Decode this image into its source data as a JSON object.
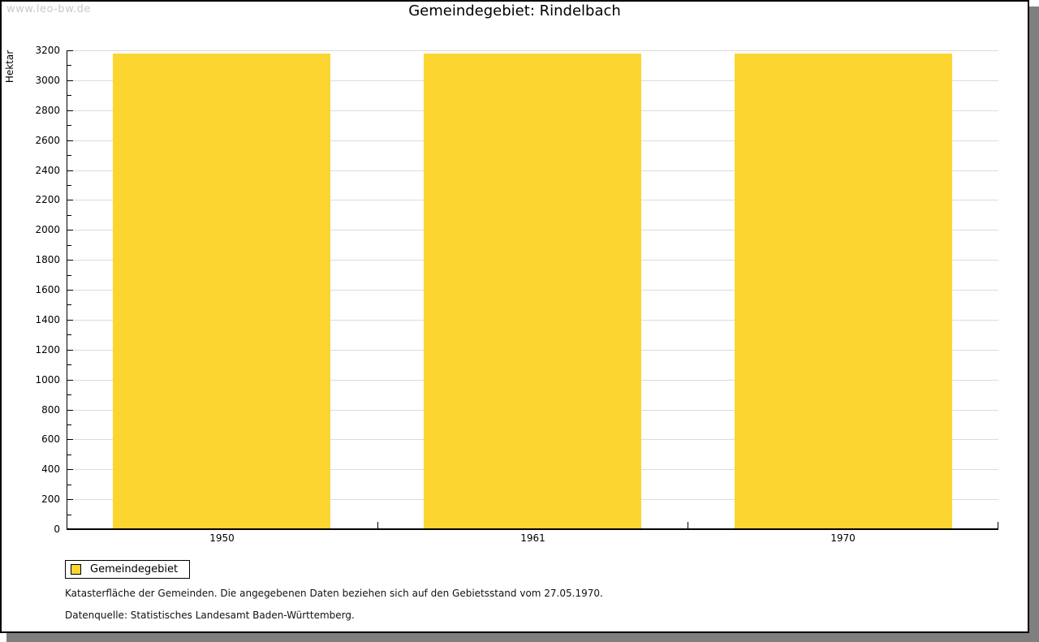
{
  "watermark": "www.leo-bw.de",
  "title": "Gemeindegebiet: Rindelbach",
  "legend": {
    "label": "Gemeindegebiet",
    "swatch_color": "#FCD530"
  },
  "footnotes": {
    "line1": "Katasterfläche der Gemeinden. Die angegebenen Daten beziehen sich auf den Gebietsstand vom 27.05.1970.",
    "line2": "Datenquelle: Statistisches Landesamt Baden-Württemberg."
  },
  "colors": {
    "bar": "#FCD530",
    "gridline": "#DCDCDC",
    "axis": "#000000",
    "watermark": "#C9C9C9",
    "frame_shadow": "#7F7F7F"
  },
  "chart_data": {
    "type": "bar",
    "title": "Gemeindegebiet: Rindelbach",
    "categories": [
      "1950",
      "1961",
      "1970"
    ],
    "series": [
      {
        "name": "Gemeindegebiet",
        "values": [
          3180,
          3180,
          3180
        ],
        "color": "#FCD530"
      }
    ],
    "xlabel": "",
    "ylabel": "Hektar",
    "ylim": [
      0,
      3200
    ],
    "ytick_interval": 200,
    "yminor_tick_interval": 100,
    "grid": "horizontal gridlines at major ticks",
    "legend_position": "bottom-left"
  }
}
